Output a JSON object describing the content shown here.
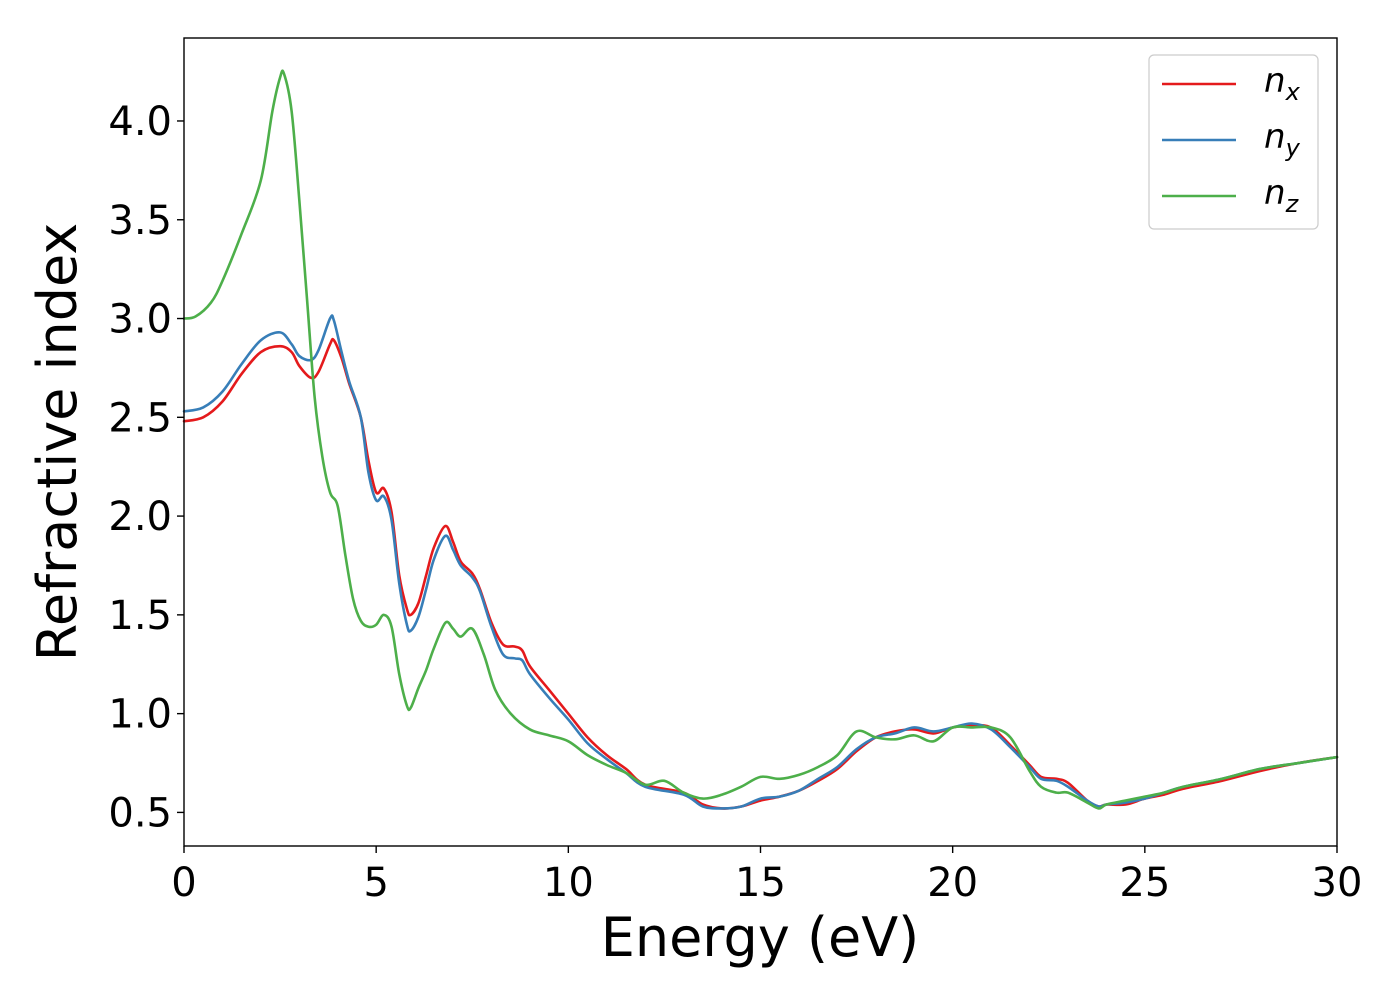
{
  "chart_data": {
    "type": "line",
    "xlabel": "Energy (eV)",
    "ylabel": "Refractive index",
    "xlim": [
      0,
      30
    ],
    "ylim": [
      0.33,
      4.42
    ],
    "x_ticks": [
      0,
      5,
      10,
      15,
      20,
      25,
      30
    ],
    "x_tick_labels": [
      "0",
      "5",
      "10",
      "15",
      "20",
      "25",
      "30"
    ],
    "y_ticks": [
      0.5,
      1.0,
      1.5,
      2.0,
      2.5,
      3.0,
      3.5,
      4.0
    ],
    "y_tick_labels": [
      "0.5",
      "1.0",
      "1.5",
      "2.0",
      "2.5",
      "3.0",
      "3.5",
      "4.0"
    ],
    "grid": false,
    "legend_position": "top-right",
    "series": [
      {
        "name": "n_x",
        "legend_base": "n",
        "legend_sub": "x",
        "color": "#e41a1c",
        "points": [
          [
            0,
            2.48
          ],
          [
            0.5,
            2.5
          ],
          [
            1,
            2.58
          ],
          [
            1.5,
            2.72
          ],
          [
            2,
            2.83
          ],
          [
            2.5,
            2.86
          ],
          [
            2.8,
            2.83
          ],
          [
            3,
            2.76
          ],
          [
            3.3,
            2.7
          ],
          [
            3.5,
            2.73
          ],
          [
            3.8,
            2.87
          ],
          [
            3.9,
            2.89
          ],
          [
            4.1,
            2.8
          ],
          [
            4.3,
            2.67
          ],
          [
            4.6,
            2.5
          ],
          [
            4.8,
            2.28
          ],
          [
            5,
            2.12
          ],
          [
            5.2,
            2.14
          ],
          [
            5.4,
            2.02
          ],
          [
            5.6,
            1.7
          ],
          [
            5.8,
            1.53
          ],
          [
            5.9,
            1.5
          ],
          [
            6.1,
            1.56
          ],
          [
            6.3,
            1.7
          ],
          [
            6.5,
            1.84
          ],
          [
            6.8,
            1.95
          ],
          [
            7,
            1.87
          ],
          [
            7.2,
            1.77
          ],
          [
            7.5,
            1.71
          ],
          [
            7.7,
            1.63
          ],
          [
            8,
            1.46
          ],
          [
            8.3,
            1.35
          ],
          [
            8.6,
            1.34
          ],
          [
            8.8,
            1.32
          ],
          [
            9,
            1.24
          ],
          [
            9.5,
            1.12
          ],
          [
            10,
            1.0
          ],
          [
            10.5,
            0.88
          ],
          [
            11,
            0.79
          ],
          [
            11.5,
            0.72
          ],
          [
            12,
            0.64
          ],
          [
            13,
            0.6
          ],
          [
            13.5,
            0.54
          ],
          [
            14,
            0.52
          ],
          [
            14.5,
            0.53
          ],
          [
            15,
            0.56
          ],
          [
            15.5,
            0.58
          ],
          [
            16,
            0.61
          ],
          [
            16.5,
            0.66
          ],
          [
            17,
            0.72
          ],
          [
            17.5,
            0.81
          ],
          [
            18,
            0.88
          ],
          [
            18.5,
            0.91
          ],
          [
            19,
            0.92
          ],
          [
            19.5,
            0.9
          ],
          [
            20,
            0.93
          ],
          [
            20.5,
            0.94
          ],
          [
            21,
            0.93
          ],
          [
            21.5,
            0.84
          ],
          [
            22,
            0.74
          ],
          [
            22.3,
            0.68
          ],
          [
            22.7,
            0.67
          ],
          [
            23,
            0.65
          ],
          [
            23.5,
            0.56
          ],
          [
            23.8,
            0.53
          ],
          [
            24,
            0.54
          ],
          [
            24.5,
            0.54
          ],
          [
            25,
            0.57
          ],
          [
            25.5,
            0.59
          ],
          [
            26,
            0.62
          ],
          [
            27,
            0.66
          ],
          [
            28,
            0.71
          ],
          [
            29,
            0.75
          ],
          [
            30,
            0.78
          ]
        ]
      },
      {
        "name": "n_y",
        "legend_base": "n",
        "legend_sub": "y",
        "color": "#377eb8",
        "points": [
          [
            0,
            2.53
          ],
          [
            0.5,
            2.55
          ],
          [
            1,
            2.63
          ],
          [
            1.5,
            2.77
          ],
          [
            2,
            2.89
          ],
          [
            2.5,
            2.93
          ],
          [
            2.8,
            2.87
          ],
          [
            3,
            2.81
          ],
          [
            3.3,
            2.79
          ],
          [
            3.5,
            2.84
          ],
          [
            3.8,
            3.0
          ],
          [
            3.9,
            2.99
          ],
          [
            4.1,
            2.83
          ],
          [
            4.3,
            2.68
          ],
          [
            4.6,
            2.5
          ],
          [
            4.8,
            2.22
          ],
          [
            5,
            2.08
          ],
          [
            5.2,
            2.1
          ],
          [
            5.4,
            1.98
          ],
          [
            5.6,
            1.66
          ],
          [
            5.8,
            1.45
          ],
          [
            5.9,
            1.42
          ],
          [
            6.1,
            1.49
          ],
          [
            6.3,
            1.63
          ],
          [
            6.5,
            1.78
          ],
          [
            6.8,
            1.9
          ],
          [
            7,
            1.83
          ],
          [
            7.2,
            1.75
          ],
          [
            7.5,
            1.69
          ],
          [
            7.7,
            1.62
          ],
          [
            8,
            1.44
          ],
          [
            8.3,
            1.3
          ],
          [
            8.6,
            1.28
          ],
          [
            8.8,
            1.27
          ],
          [
            9,
            1.2
          ],
          [
            9.5,
            1.08
          ],
          [
            10,
            0.97
          ],
          [
            10.5,
            0.85
          ],
          [
            11,
            0.77
          ],
          [
            11.5,
            0.7
          ],
          [
            12,
            0.63
          ],
          [
            13,
            0.59
          ],
          [
            13.5,
            0.53
          ],
          [
            14,
            0.52
          ],
          [
            14.5,
            0.53
          ],
          [
            15,
            0.57
          ],
          [
            15.5,
            0.58
          ],
          [
            16,
            0.61
          ],
          [
            16.5,
            0.67
          ],
          [
            17,
            0.73
          ],
          [
            17.5,
            0.82
          ],
          [
            18,
            0.88
          ],
          [
            18.5,
            0.9
          ],
          [
            19,
            0.93
          ],
          [
            19.5,
            0.91
          ],
          [
            20,
            0.93
          ],
          [
            20.5,
            0.95
          ],
          [
            21,
            0.92
          ],
          [
            21.5,
            0.83
          ],
          [
            22,
            0.73
          ],
          [
            22.3,
            0.67
          ],
          [
            22.7,
            0.66
          ],
          [
            23,
            0.63
          ],
          [
            23.5,
            0.56
          ],
          [
            23.8,
            0.53
          ],
          [
            24,
            0.54
          ],
          [
            24.5,
            0.55
          ],
          [
            25,
            0.57
          ],
          [
            25.5,
            0.6
          ],
          [
            26,
            0.63
          ],
          [
            27,
            0.67
          ],
          [
            28,
            0.72
          ],
          [
            29,
            0.75
          ],
          [
            30,
            0.78
          ]
        ]
      },
      {
        "name": "n_z",
        "legend_base": "n",
        "legend_sub": "z",
        "color": "#4daf4a",
        "points": [
          [
            0,
            3.0
          ],
          [
            0.3,
            3.01
          ],
          [
            0.7,
            3.08
          ],
          [
            1,
            3.19
          ],
          [
            1.5,
            3.43
          ],
          [
            2,
            3.7
          ],
          [
            2.3,
            4.05
          ],
          [
            2.5,
            4.22
          ],
          [
            2.6,
            4.24
          ],
          [
            2.8,
            4.05
          ],
          [
            3,
            3.6
          ],
          [
            3.2,
            3.1
          ],
          [
            3.4,
            2.6
          ],
          [
            3.6,
            2.3
          ],
          [
            3.8,
            2.12
          ],
          [
            4,
            2.05
          ],
          [
            4.2,
            1.8
          ],
          [
            4.4,
            1.58
          ],
          [
            4.6,
            1.47
          ],
          [
            4.8,
            1.44
          ],
          [
            5,
            1.45
          ],
          [
            5.2,
            1.5
          ],
          [
            5.4,
            1.44
          ],
          [
            5.6,
            1.2
          ],
          [
            5.8,
            1.04
          ],
          [
            5.9,
            1.03
          ],
          [
            6.1,
            1.13
          ],
          [
            6.3,
            1.22
          ],
          [
            6.5,
            1.33
          ],
          [
            6.8,
            1.46
          ],
          [
            7,
            1.43
          ],
          [
            7.2,
            1.39
          ],
          [
            7.5,
            1.43
          ],
          [
            7.8,
            1.3
          ],
          [
            8.1,
            1.12
          ],
          [
            8.5,
            1.0
          ],
          [
            9,
            0.92
          ],
          [
            9.5,
            0.89
          ],
          [
            10,
            0.86
          ],
          [
            10.5,
            0.79
          ],
          [
            11,
            0.74
          ],
          [
            11.5,
            0.7
          ],
          [
            12,
            0.64
          ],
          [
            12.5,
            0.66
          ],
          [
            13,
            0.6
          ],
          [
            13.5,
            0.57
          ],
          [
            14,
            0.59
          ],
          [
            14.5,
            0.63
          ],
          [
            15,
            0.68
          ],
          [
            15.5,
            0.67
          ],
          [
            16,
            0.69
          ],
          [
            16.5,
            0.73
          ],
          [
            17,
            0.79
          ],
          [
            17.5,
            0.91
          ],
          [
            18,
            0.88
          ],
          [
            18.5,
            0.87
          ],
          [
            19,
            0.89
          ],
          [
            19.5,
            0.86
          ],
          [
            20,
            0.93
          ],
          [
            20.5,
            0.93
          ],
          [
            21,
            0.93
          ],
          [
            21.5,
            0.88
          ],
          [
            22,
            0.71
          ],
          [
            22.3,
            0.63
          ],
          [
            22.7,
            0.6
          ],
          [
            23,
            0.6
          ],
          [
            23.5,
            0.55
          ],
          [
            23.8,
            0.52
          ],
          [
            24,
            0.54
          ],
          [
            24.5,
            0.56
          ],
          [
            25,
            0.58
          ],
          [
            25.5,
            0.6
          ],
          [
            26,
            0.63
          ],
          [
            27,
            0.67
          ],
          [
            28,
            0.72
          ],
          [
            29,
            0.75
          ],
          [
            30,
            0.78
          ]
        ]
      }
    ]
  }
}
